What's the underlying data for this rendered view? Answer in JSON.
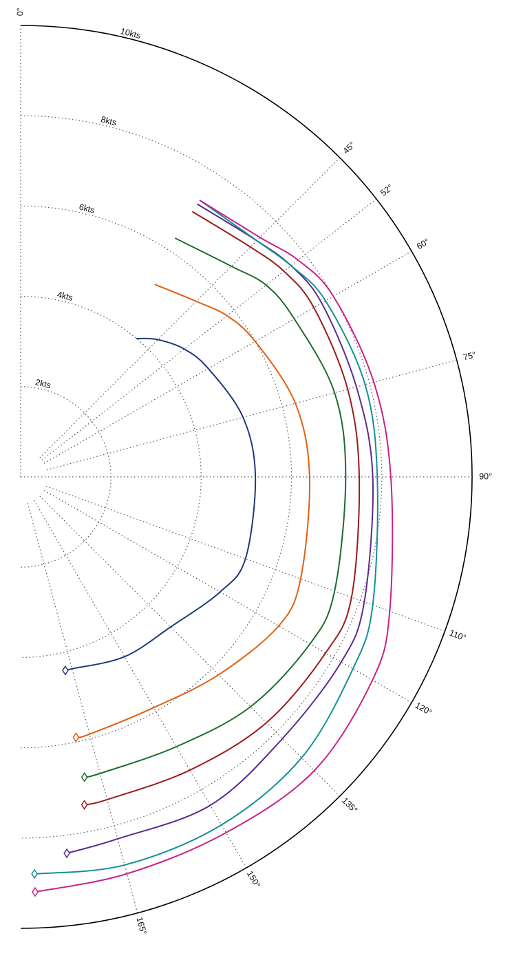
{
  "chart_data": {
    "type": "line",
    "subtype": "polar",
    "title": "",
    "radial_axis": {
      "max": 10,
      "ticks": [
        2,
        4,
        6,
        8,
        10
      ],
      "tick_labels": [
        "2kts",
        "4kts",
        "6kts",
        "8kts",
        "10kts"
      ]
    },
    "angular_axis": {
      "range": [
        0,
        180
      ],
      "ticks": [
        0,
        45,
        52,
        60,
        75,
        90,
        110,
        120,
        135,
        150,
        165
      ],
      "tick_labels": [
        "0°",
        "45°",
        "52°",
        "60°",
        "75°",
        "90°",
        "110°",
        "120°",
        "135°",
        "150°",
        "165°"
      ]
    },
    "grid": true,
    "legend": null,
    "series": [
      {
        "color": "#1f3a7a",
        "points": [
          [
            40,
            4.0
          ],
          [
            45,
            4.3
          ],
          [
            52,
            4.6
          ],
          [
            60,
            4.8
          ],
          [
            75,
            5.1
          ],
          [
            90,
            5.2
          ],
          [
            110,
            5.3
          ],
          [
            120,
            5.1
          ],
          [
            135,
            4.7
          ],
          [
            150,
            4.6
          ],
          [
            165,
            4.4
          ],
          [
            167,
            4.4
          ]
        ]
      },
      {
        "color": "#e06010",
        "points": [
          [
            35,
            5.2
          ],
          [
            45,
            5.5
          ],
          [
            52,
            5.8
          ],
          [
            60,
            6.0
          ],
          [
            75,
            6.3
          ],
          [
            90,
            6.4
          ],
          [
            110,
            6.6
          ],
          [
            120,
            6.6
          ],
          [
            135,
            6.2
          ],
          [
            150,
            5.9
          ],
          [
            165,
            5.9
          ],
          [
            168,
            5.9
          ]
        ]
      },
      {
        "color": "#1e6b2a",
        "points": [
          [
            33,
            6.3
          ],
          [
            45,
            6.6
          ],
          [
            52,
            6.9
          ],
          [
            60,
            7.0
          ],
          [
            75,
            7.2
          ],
          [
            90,
            7.2
          ],
          [
            110,
            7.4
          ],
          [
            120,
            7.4
          ],
          [
            135,
            7.2
          ],
          [
            150,
            6.9
          ],
          [
            165,
            6.8
          ],
          [
            168,
            6.8
          ]
        ]
      },
      {
        "color": "#9b1b1b",
        "points": [
          [
            33,
            7.0
          ],
          [
            45,
            7.2
          ],
          [
            52,
            7.4
          ],
          [
            60,
            7.5
          ],
          [
            75,
            7.5
          ],
          [
            90,
            7.5
          ],
          [
            110,
            7.8
          ],
          [
            120,
            7.8
          ],
          [
            135,
            7.7
          ],
          [
            150,
            7.5
          ],
          [
            165,
            7.4
          ],
          [
            169,
            7.4
          ]
        ]
      },
      {
        "color": "#5b2a8c",
        "points": [
          [
            33,
            7.2
          ],
          [
            45,
            7.4
          ],
          [
            52,
            7.6
          ],
          [
            60,
            7.7
          ],
          [
            75,
            7.7
          ],
          [
            90,
            7.8
          ],
          [
            110,
            8.1
          ],
          [
            120,
            8.2
          ],
          [
            135,
            8.2
          ],
          [
            150,
            8.4
          ],
          [
            165,
            8.3
          ],
          [
            173,
            8.4
          ]
        ]
      },
      {
        "color": "#13909a",
        "points": [
          [
            33,
            7.3
          ],
          [
            45,
            7.4
          ],
          [
            52,
            7.6
          ],
          [
            60,
            7.8
          ],
          [
            75,
            7.9
          ],
          [
            90,
            7.9
          ],
          [
            110,
            8.3
          ],
          [
            120,
            8.5
          ],
          [
            135,
            8.8
          ],
          [
            150,
            8.9
          ],
          [
            165,
            8.9
          ],
          [
            178,
            8.8
          ]
        ]
      },
      {
        "color": "#c8228a",
        "points": [
          [
            33,
            7.3
          ],
          [
            45,
            7.5
          ],
          [
            52,
            7.8
          ],
          [
            60,
            8.0
          ],
          [
            75,
            8.1
          ],
          [
            90,
            8.2
          ],
          [
            110,
            8.7
          ],
          [
            120,
            9.0
          ],
          [
            135,
            9.2
          ],
          [
            150,
            9.1
          ],
          [
            165,
            9.1
          ],
          [
            178,
            9.2
          ]
        ]
      }
    ]
  }
}
